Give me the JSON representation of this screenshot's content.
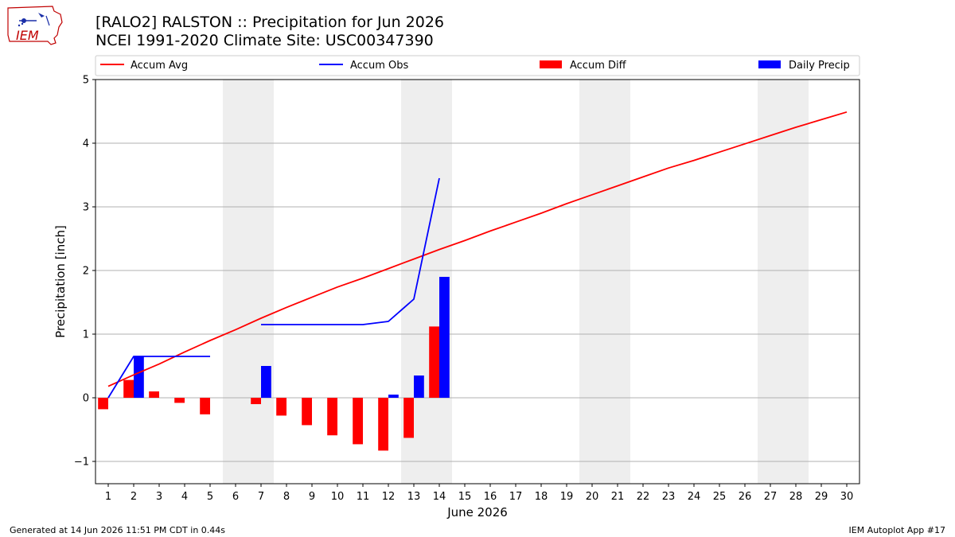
{
  "header": {
    "title": "[RALO2] RALSTON :: Precipitation for Jun 2026",
    "subtitle": "NCEI 1991-2020 Climate Site: USC00347390",
    "logo_text": "IEM"
  },
  "footer": {
    "generated": "Generated at 14 Jun 2026 11:51 PM CDT in 0.44s",
    "app": "IEM Autoplot App #17"
  },
  "colors": {
    "avg": "#ff0000",
    "obs": "#0000ff",
    "diff": "#ff0000",
    "daily": "#0000ff",
    "weekend_shade": "#eeeeee",
    "grid": "#b0b0b0"
  },
  "chart_data": {
    "type": "bar",
    "xlabel": "June 2026",
    "ylabel": "Precipitation [inch]",
    "xlim": [
      0.5,
      30.5
    ],
    "ylim": [
      -1.35,
      5
    ],
    "yticks": [
      -1,
      0,
      1,
      2,
      3,
      4,
      5
    ],
    "ytick_labels": [
      "−1",
      "0",
      "1",
      "2",
      "3",
      "4",
      "5"
    ],
    "x_ticks": [
      1,
      2,
      3,
      4,
      5,
      6,
      7,
      8,
      9,
      10,
      11,
      12,
      13,
      14,
      15,
      16,
      17,
      18,
      19,
      20,
      21,
      22,
      23,
      24,
      25,
      26,
      27,
      28,
      29,
      30
    ],
    "grid": "horizontal",
    "legend_position": "top",
    "weekend_days": [
      6,
      7,
      13,
      14,
      20,
      21,
      27,
      28
    ],
    "series": [
      {
        "name": "Accum Avg",
        "type": "line",
        "color": "#ff0000",
        "x": [
          1,
          2,
          3,
          4,
          5,
          6,
          7,
          8,
          9,
          10,
          11,
          12,
          13,
          14,
          15,
          16,
          17,
          18,
          19,
          20,
          21,
          22,
          23,
          24,
          25,
          26,
          27,
          28,
          29,
          30
        ],
        "values": [
          0.18,
          0.36,
          0.53,
          0.72,
          0.9,
          1.07,
          1.25,
          1.42,
          1.58,
          1.74,
          1.88,
          2.03,
          2.18,
          2.33,
          2.47,
          2.62,
          2.76,
          2.9,
          3.05,
          3.19,
          3.33,
          3.47,
          3.61,
          3.73,
          3.86,
          3.99,
          4.12,
          4.25,
          4.37,
          4.49
        ]
      },
      {
        "name": "Accum Obs",
        "type": "line",
        "color": "#0000ff",
        "x": [
          1,
          2,
          3,
          4,
          5,
          6,
          7,
          8,
          9,
          10,
          11,
          12,
          13,
          14
        ],
        "values": [
          0.0,
          0.65,
          0.65,
          0.65,
          0.65,
          null,
          1.15,
          1.15,
          1.15,
          1.15,
          1.15,
          1.2,
          1.55,
          3.45
        ]
      },
      {
        "name": "Accum Diff",
        "type": "bar",
        "color": "#ff0000",
        "x": [
          1,
          2,
          3,
          4,
          5,
          6,
          7,
          8,
          9,
          10,
          11,
          12,
          13,
          14
        ],
        "values": [
          -0.18,
          0.28,
          0.1,
          -0.08,
          -0.26,
          null,
          -0.1,
          -0.28,
          -0.43,
          -0.59,
          -0.73,
          -0.83,
          -0.63,
          1.12
        ]
      },
      {
        "name": "Daily Precip",
        "type": "bar",
        "color": "#0000ff",
        "x": [
          1,
          2,
          3,
          4,
          5,
          6,
          7,
          8,
          9,
          10,
          11,
          12,
          13,
          14
        ],
        "values": [
          0,
          0.65,
          0,
          0,
          0,
          0,
          0.5,
          0,
          0,
          0,
          0,
          0.05,
          0.35,
          1.9
        ]
      }
    ]
  }
}
